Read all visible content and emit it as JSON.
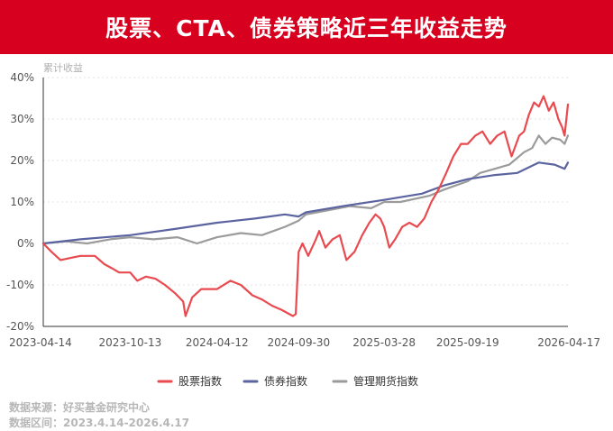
{
  "title": "股票、CTA、债券策略近三年收益走势",
  "footer": {
    "source": "数据来源：好买基金研究中心",
    "range": "数据区间：2023.4.14-2026.4.17"
  },
  "chart_data": {
    "type": "line",
    "ylabel": "累计收益",
    "ylim": [
      -20,
      40
    ],
    "yticks": [
      "40%",
      "30%",
      "20%",
      "10%",
      "0%",
      "-10%",
      "-20%"
    ],
    "ytick_values": [
      40,
      30,
      20,
      10,
      0,
      -10,
      -20
    ],
    "xticks": [
      "2023-04-14",
      "2023-10-13",
      "2024-04-12",
      "2024-09-30",
      "2025-03-28",
      "2025-09-19",
      "2026-04-17"
    ],
    "xlim": [
      "2023-04-14",
      "2026-04-17"
    ],
    "grid": "horizontal-dotted",
    "legend_position": "bottom",
    "series": [
      {
        "name": "股票指数",
        "color": "#e84a4f",
        "points": [
          [
            "2023-04-14",
            0
          ],
          [
            "2023-05-01",
            -2
          ],
          [
            "2023-05-20",
            -4
          ],
          [
            "2023-06-10",
            -3.5
          ],
          [
            "2023-07-01",
            -3
          ],
          [
            "2023-07-31",
            -3
          ],
          [
            "2023-08-20",
            -5
          ],
          [
            "2023-09-05",
            -6
          ],
          [
            "2023-09-20",
            -7
          ],
          [
            "2023-10-13",
            -7
          ],
          [
            "2023-10-28",
            -9
          ],
          [
            "2023-11-15",
            -8
          ],
          [
            "2023-12-05",
            -8.5
          ],
          [
            "2023-12-25",
            -10
          ],
          [
            "2024-01-15",
            -12
          ],
          [
            "2024-02-01",
            -14
          ],
          [
            "2024-02-06",
            -17.5
          ],
          [
            "2024-02-20",
            -13
          ],
          [
            "2024-03-10",
            -11
          ],
          [
            "2024-04-12",
            -11
          ],
          [
            "2024-05-10",
            -9
          ],
          [
            "2024-06-01",
            -10
          ],
          [
            "2024-06-25",
            -12.5
          ],
          [
            "2024-07-15",
            -13.5
          ],
          [
            "2024-08-05",
            -15
          ],
          [
            "2024-08-25",
            -16
          ],
          [
            "2024-09-18",
            -17.5
          ],
          [
            "2024-09-24",
            -17
          ],
          [
            "2024-09-30",
            -2
          ],
          [
            "2024-10-08",
            0
          ],
          [
            "2024-10-20",
            -3
          ],
          [
            "2024-11-05",
            1
          ],
          [
            "2024-11-12",
            3
          ],
          [
            "2024-11-25",
            -1
          ],
          [
            "2024-12-10",
            1
          ],
          [
            "2024-12-25",
            2
          ],
          [
            "2025-01-08",
            -4
          ],
          [
            "2025-01-25",
            -2
          ],
          [
            "2025-02-10",
            2
          ],
          [
            "2025-02-25",
            5
          ],
          [
            "2025-03-10",
            7
          ],
          [
            "2025-03-20",
            6
          ],
          [
            "2025-03-28",
            4
          ],
          [
            "2025-04-08",
            -1
          ],
          [
            "2025-04-20",
            1
          ],
          [
            "2025-05-05",
            4
          ],
          [
            "2025-05-20",
            5
          ],
          [
            "2025-06-05",
            4
          ],
          [
            "2025-06-20",
            6
          ],
          [
            "2025-07-05",
            10
          ],
          [
            "2025-07-20",
            13
          ],
          [
            "2025-08-05",
            17
          ],
          [
            "2025-08-20",
            21
          ],
          [
            "2025-09-05",
            24
          ],
          [
            "2025-09-19",
            24
          ],
          [
            "2025-10-05",
            26
          ],
          [
            "2025-10-20",
            27
          ],
          [
            "2025-11-05",
            24
          ],
          [
            "2025-11-20",
            26
          ],
          [
            "2025-12-05",
            27
          ],
          [
            "2025-12-20",
            21
          ],
          [
            "2026-01-05",
            26
          ],
          [
            "2026-01-15",
            27
          ],
          [
            "2026-01-25",
            31
          ],
          [
            "2026-02-05",
            34
          ],
          [
            "2026-02-15",
            33
          ],
          [
            "2026-02-25",
            35.5
          ],
          [
            "2026-03-08",
            32
          ],
          [
            "2026-03-18",
            34
          ],
          [
            "2026-03-28",
            30
          ],
          [
            "2026-04-05",
            28
          ],
          [
            "2026-04-10",
            26
          ],
          [
            "2026-04-17",
            33.5
          ]
        ]
      },
      {
        "name": "债券指数",
        "color": "#5b64a0",
        "points": [
          [
            "2023-04-14",
            0
          ],
          [
            "2023-07-01",
            1
          ],
          [
            "2023-10-13",
            2
          ],
          [
            "2024-01-15",
            3.5
          ],
          [
            "2024-04-12",
            5
          ],
          [
            "2024-06-30",
            6
          ],
          [
            "2024-09-01",
            7
          ],
          [
            "2024-09-30",
            6.5
          ],
          [
            "2024-10-15",
            7.5
          ],
          [
            "2025-01-01",
            9
          ],
          [
            "2025-03-28",
            10.5
          ],
          [
            "2025-06-15",
            12
          ],
          [
            "2025-08-01",
            14
          ],
          [
            "2025-09-19",
            15.5
          ],
          [
            "2025-11-15",
            16.5
          ],
          [
            "2026-01-01",
            17
          ],
          [
            "2026-02-15",
            19.5
          ],
          [
            "2026-03-20",
            19
          ],
          [
            "2026-04-10",
            18
          ],
          [
            "2026-04-17",
            19.5
          ]
        ]
      },
      {
        "name": "管理期货指数",
        "color": "#9b9b9b",
        "points": [
          [
            "2023-04-14",
            0
          ],
          [
            "2023-06-01",
            0.5
          ],
          [
            "2023-07-15",
            0
          ],
          [
            "2023-09-01",
            1
          ],
          [
            "2023-10-13",
            1.5
          ],
          [
            "2023-12-01",
            1
          ],
          [
            "2024-01-20",
            1.5
          ],
          [
            "2024-03-01",
            0
          ],
          [
            "2024-04-12",
            1.5
          ],
          [
            "2024-06-01",
            2.5
          ],
          [
            "2024-07-15",
            2
          ],
          [
            "2024-09-01",
            4
          ],
          [
            "2024-09-30",
            5.5
          ],
          [
            "2024-10-15",
            7
          ],
          [
            "2024-12-01",
            8
          ],
          [
            "2025-01-15",
            9
          ],
          [
            "2025-03-01",
            8.5
          ],
          [
            "2025-03-28",
            10
          ],
          [
            "2025-05-01",
            10
          ],
          [
            "2025-07-01",
            11.5
          ],
          [
            "2025-08-01",
            13
          ],
          [
            "2025-09-19",
            15
          ],
          [
            "2025-10-15",
            17
          ],
          [
            "2025-11-15",
            18
          ],
          [
            "2025-12-15",
            19
          ],
          [
            "2026-01-15",
            22
          ],
          [
            "2026-02-01",
            23
          ],
          [
            "2026-02-15",
            26
          ],
          [
            "2026-03-01",
            24
          ],
          [
            "2026-03-15",
            25.5
          ],
          [
            "2026-04-01",
            25
          ],
          [
            "2026-04-10",
            24
          ],
          [
            "2026-04-17",
            26
          ]
        ]
      }
    ]
  }
}
